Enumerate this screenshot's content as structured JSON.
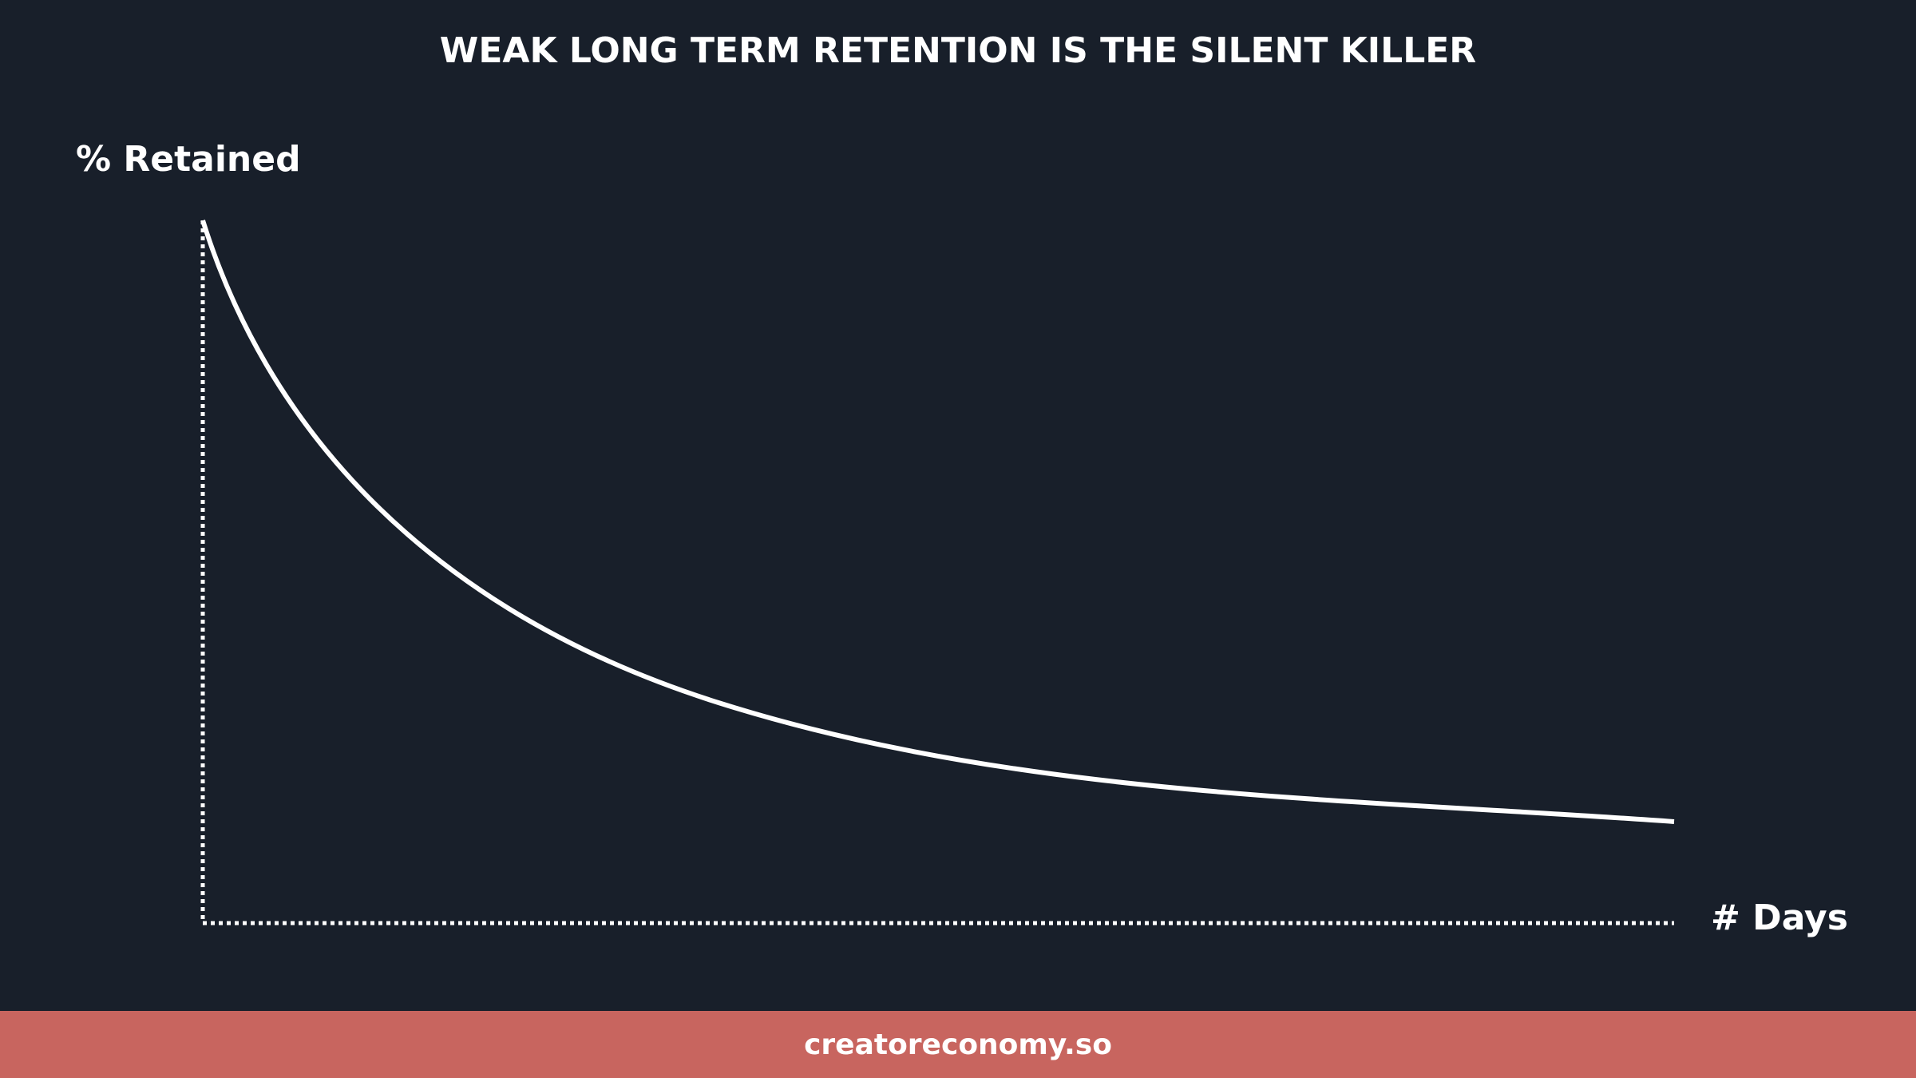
{
  "title": "WEAK LONG TERM RETENTION IS THE SILENT KILLER",
  "y_axis_label": "% Retained",
  "x_axis_label": "# Days",
  "footer": "creatoreconomy.so"
}
